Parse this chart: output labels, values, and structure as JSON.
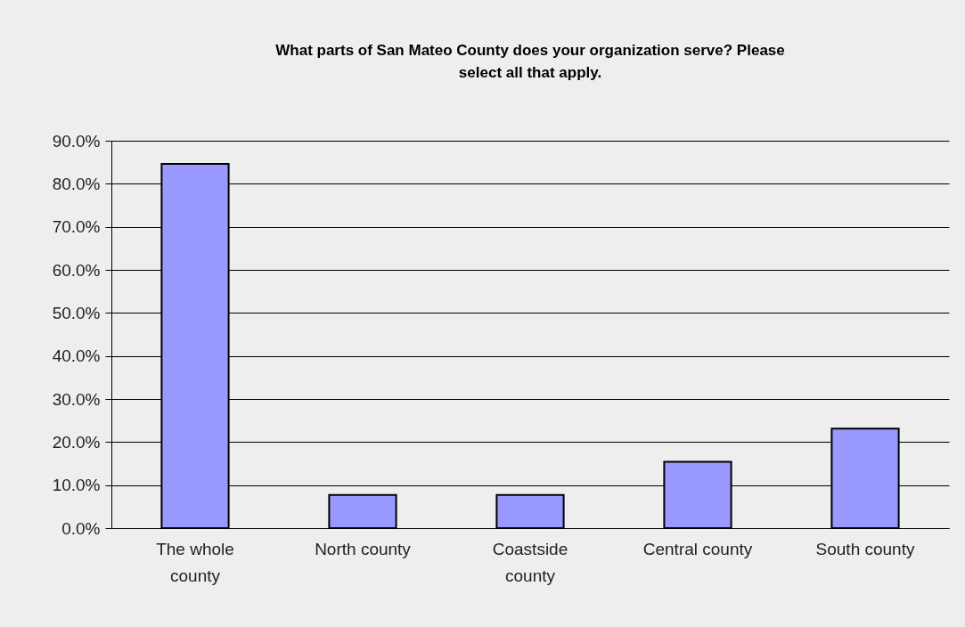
{
  "chart_data": {
    "type": "bar",
    "title": "What parts of San Mateo County does your organization serve? Please select all that apply.",
    "categories": [
      "The whole county",
      "North county",
      "Coastside county",
      "Central county",
      "South county"
    ],
    "values": [
      84.6,
      7.7,
      7.7,
      15.4,
      23.1
    ],
    "color": "#9999ff",
    "ylim": [
      0,
      90
    ],
    "yticks": [
      {
        "value": 0,
        "label": "0.0%"
      },
      {
        "value": 10,
        "label": "10.0%"
      },
      {
        "value": 20,
        "label": "20.0%"
      },
      {
        "value": 30,
        "label": "30.0%"
      },
      {
        "value": 40,
        "label": "40.0%"
      },
      {
        "value": 50,
        "label": "50.0%"
      },
      {
        "value": 60,
        "label": "60.0%"
      },
      {
        "value": 70,
        "label": "70.0%"
      },
      {
        "value": 80,
        "label": "80.0%"
      },
      {
        "value": 90,
        "label": "90.0%"
      }
    ],
    "grid": "y"
  }
}
